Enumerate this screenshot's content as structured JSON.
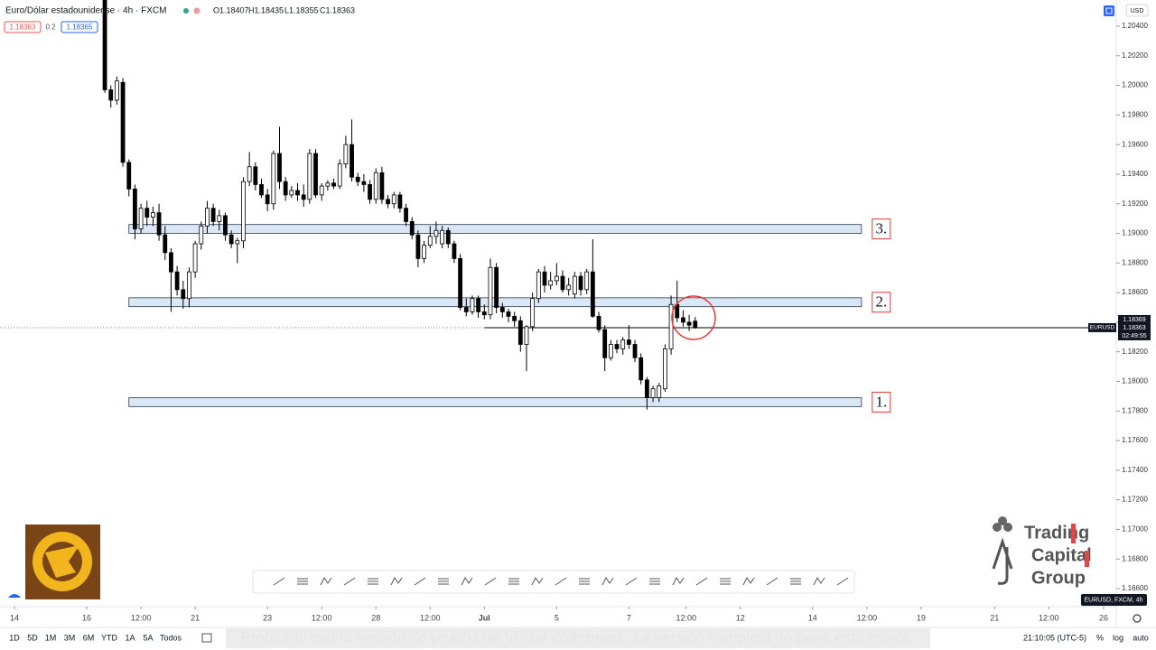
{
  "header": {
    "symbol": "Euro/Dólar estadounidense · 4h · FXCM",
    "ohlc": [
      "O1.18407",
      "H1.18435",
      "L1.18355",
      "C1.18363"
    ],
    "sell": "1.18363",
    "spread": "0.2",
    "buy": "1.18365",
    "currency": "USD"
  },
  "price_tags": {
    "bid": "1.18369",
    "last": "1.18363",
    "countdown": "02:49:55",
    "symbol_tag": "EURUSD"
  },
  "bottom_bar": {
    "ranges": [
      "1D",
      "5D",
      "1M",
      "3M",
      "6M",
      "YTD",
      "1A",
      "5A",
      "Todos"
    ],
    "clock": "21:10:05 (UTC-5)",
    "options": [
      "%",
      "log",
      "auto"
    ]
  },
  "series_tag": "EURUSD, FXCM, 4h",
  "logo": {
    "lines": [
      "Trading",
      "Capital",
      "Group"
    ]
  },
  "watermark": "Protegido con la versión de prueba de Visual Watermark. La versión completa no pone esta marca.",
  "chart_data": {
    "type": "candlestick",
    "up_color": "#ffffff",
    "down_color": "#000000",
    "wick_color": "#000000",
    "open": [
      1.206,
      1.1997,
      1.199,
      1.2002,
      1.1948,
      1.193,
      1.1903,
      1.1917,
      1.1911,
      1.1914,
      1.1899,
      1.1887,
      1.1874,
      1.1862,
      1.1856,
      1.1874,
      1.1893,
      1.1905,
      1.1917,
      1.1908,
      1.1912,
      1.1899,
      1.1893,
      1.1895,
      1.1935,
      1.1945,
      1.1933,
      1.1926,
      1.192,
      1.1954,
      1.1935,
      1.1926,
      1.1929,
      1.1926,
      1.1923,
      1.1954,
      1.1926,
      1.1932,
      1.1934,
      1.1932,
      1.1947,
      1.196,
      1.1938,
      1.1935,
      1.1933,
      1.1923,
      1.1941,
      1.1923,
      1.192,
      1.1926,
      1.1917,
      1.1908,
      1.1899,
      1.1883,
      1.1892,
      1.1898,
      1.1893,
      1.1902,
      1.1893,
      1.1883,
      1.185,
      1.1847,
      1.1856,
      1.1847,
      1.1845,
      1.1877,
      1.185,
      1.1847,
      1.1844,
      1.1841,
      1.1825,
      1.1837,
      1.1856,
      1.1874,
      1.1865,
      1.1868,
      1.1871,
      1.1862,
      1.1859,
      1.1871,
      1.1862,
      1.1874,
      1.1844,
      1.1835,
      1.1816,
      1.1825,
      1.1822,
      1.1828,
      1.1825,
      1.1816,
      1.1801,
      1.1789,
      1.1789,
      1.1795,
      1.1822,
      1.1852,
      1.1843,
      1.184,
      1.18407
    ],
    "high": [
      1.2065,
      1.2,
      1.2006,
      1.2005,
      1.195,
      1.1933,
      1.192,
      1.1922,
      1.1918,
      1.192,
      1.1905,
      1.189,
      1.1878,
      1.1868,
      1.1877,
      1.1895,
      1.1908,
      1.1922,
      1.192,
      1.1916,
      1.1914,
      1.1902,
      1.1897,
      1.1938,
      1.1955,
      1.1948,
      1.1937,
      1.193,
      1.1956,
      1.1972,
      1.1938,
      1.1932,
      1.1934,
      1.1933,
      1.1957,
      1.1957,
      1.1934,
      1.1936,
      1.1937,
      1.195,
      1.1966,
      1.1977,
      1.1941,
      1.194,
      1.1936,
      1.1944,
      1.1945,
      1.1926,
      1.1928,
      1.1928,
      1.192,
      1.1911,
      1.1902,
      1.1895,
      1.1905,
      1.1908,
      1.1905,
      1.1904,
      1.1895,
      1.1886,
      1.1856,
      1.1858,
      1.1858,
      1.1852,
      1.1883,
      1.188,
      1.1853,
      1.1849,
      1.1847,
      1.1844,
      1.1838,
      1.186,
      1.1876,
      1.1878,
      1.1874,
      1.188,
      1.1875,
      1.187,
      1.1874,
      1.1874,
      1.1876,
      1.1896,
      1.1847,
      1.1838,
      1.1828,
      1.1828,
      1.183,
      1.1838,
      1.1828,
      1.1819,
      1.1803,
      1.1797,
      1.1799,
      1.1825,
      1.1858,
      1.1868,
      1.1848,
      1.1845,
      1.18435
    ],
    "low": [
      1.1995,
      1.1985,
      1.1987,
      1.1945,
      1.1925,
      1.1896,
      1.19,
      1.1905,
      1.1905,
      1.1895,
      1.1882,
      1.1847,
      1.1858,
      1.1849,
      1.185,
      1.187,
      1.1889,
      1.19,
      1.1905,
      1.1902,
      1.1895,
      1.189,
      1.188,
      1.189,
      1.1932,
      1.1929,
      1.1924,
      1.1915,
      1.1916,
      1.193,
      1.1922,
      1.1924,
      1.1922,
      1.1918,
      1.192,
      1.1924,
      1.1922,
      1.1929,
      1.193,
      1.193,
      1.1944,
      1.1935,
      1.1932,
      1.1928,
      1.192,
      1.192,
      1.192,
      1.1917,
      1.1917,
      1.1914,
      1.1905,
      1.1896,
      1.1877,
      1.188,
      1.189,
      1.1893,
      1.189,
      1.189,
      1.188,
      1.1848,
      1.1844,
      1.1845,
      1.1843,
      1.1842,
      1.1842,
      1.1846,
      1.1843,
      1.184,
      1.1837,
      1.182,
      1.1807,
      1.1834,
      1.1853,
      1.186,
      1.1862,
      1.1865,
      1.186,
      1.1858,
      1.1856,
      1.1858,
      1.1859,
      1.1843,
      1.1833,
      1.1807,
      1.1814,
      1.1819,
      1.1818,
      1.1822,
      1.1813,
      1.1798,
      1.1781,
      1.1786,
      1.1786,
      1.1793,
      1.1818,
      1.184,
      1.1837,
      1.1834,
      1.18355
    ],
    "close": [
      1.1997,
      1.199,
      1.2003,
      1.1948,
      1.193,
      1.1903,
      1.1917,
      1.1911,
      1.1914,
      1.1899,
      1.1887,
      1.1874,
      1.1862,
      1.1856,
      1.1874,
      1.1893,
      1.1905,
      1.1917,
      1.1908,
      1.1912,
      1.1899,
      1.1893,
      1.1895,
      1.1935,
      1.1945,
      1.1933,
      1.1926,
      1.192,
      1.1954,
      1.1935,
      1.1926,
      1.1929,
      1.1926,
      1.1923,
      1.1954,
      1.1926,
      1.1932,
      1.1934,
      1.1932,
      1.1947,
      1.196,
      1.1938,
      1.1935,
      1.1933,
      1.1923,
      1.1941,
      1.1923,
      1.192,
      1.1926,
      1.1917,
      1.1908,
      1.1899,
      1.1883,
      1.1892,
      1.1898,
      1.1902,
      1.1902,
      1.1893,
      1.1883,
      1.185,
      1.1847,
      1.1856,
      1.1847,
      1.1845,
      1.1877,
      1.185,
      1.1847,
      1.1844,
      1.1841,
      1.1825,
      1.1837,
      1.1856,
      1.1874,
      1.1865,
      1.1868,
      1.1871,
      1.1862,
      1.1865,
      1.1871,
      1.1862,
      1.1874,
      1.1844,
      1.1835,
      1.1816,
      1.1825,
      1.1822,
      1.1828,
      1.1825,
      1.1816,
      1.1801,
      1.1789,
      1.1795,
      1.1797,
      1.1822,
      1.1852,
      1.1843,
      1.184,
      1.1838,
      1.18363
    ],
    "xlim": [
      -17.4,
      167.9
    ],
    "xticks": [
      {
        "value": -15,
        "label": "14"
      },
      {
        "value": -3,
        "label": "16"
      },
      {
        "value": 6,
        "label": "12:00"
      },
      {
        "value": 15,
        "label": "21"
      },
      {
        "value": 27,
        "label": "23"
      },
      {
        "value": 36,
        "label": "12:00"
      },
      {
        "value": 45,
        "label": "28"
      },
      {
        "value": 54,
        "label": "12:00"
      },
      {
        "value": 63,
        "label": "Jul"
      },
      {
        "value": 75,
        "label": "5"
      },
      {
        "value": 87,
        "label": "7"
      },
      {
        "value": 96.5,
        "label": "12:00"
      },
      {
        "value": 105.5,
        "label": "12"
      },
      {
        "value": 117.5,
        "label": "14"
      },
      {
        "value": 126.5,
        "label": "12:00"
      },
      {
        "value": 135.5,
        "label": "19"
      },
      {
        "value": 147.7,
        "label": "21"
      },
      {
        "value": 156.7,
        "label": "12:00"
      },
      {
        "value": 165.8,
        "label": "26"
      }
    ],
    "ylim": [
      1.16478,
      1.20577
    ],
    "yticks": [
      {
        "value": 1.166,
        "label": "1.16600"
      },
      {
        "value": 1.168,
        "label": "1.16800"
      },
      {
        "value": 1.17,
        "label": "1.17000"
      },
      {
        "value": 1.172,
        "label": "1.17200"
      },
      {
        "value": 1.174,
        "label": "1.17400"
      },
      {
        "value": 1.176,
        "label": "1.17600"
      },
      {
        "value": 1.178,
        "label": "1.17800"
      },
      {
        "value": 1.18,
        "label": "1.18000"
      },
      {
        "value": 1.182,
        "label": "1.18200"
      },
      {
        "value": 1.184,
        "label": "1.18400"
      },
      {
        "value": 1.186,
        "label": "1.18600"
      },
      {
        "value": 1.188,
        "label": "1.18800"
      },
      {
        "value": 1.19,
        "label": "1.19000"
      },
      {
        "value": 1.192,
        "label": "1.19200"
      },
      {
        "value": 1.194,
        "label": "1.19400"
      },
      {
        "value": 1.196,
        "label": "1.19600"
      },
      {
        "value": 1.198,
        "label": "1.19800"
      },
      {
        "value": 1.2,
        "label": "1.20000"
      },
      {
        "value": 1.202,
        "label": "1.20200"
      },
      {
        "value": 1.204,
        "label": "1.20400"
      }
    ],
    "zones": [
      {
        "label": "3.",
        "top": 1.1906,
        "bottom": 1.19,
        "start": 4,
        "end": 125.6
      },
      {
        "label": "2.",
        "top": 1.18565,
        "bottom": 1.18505,
        "start": 4,
        "end": 125.6
      },
      {
        "label": "1.",
        "top": 1.1789,
        "bottom": 1.1783,
        "start": 4,
        "end": 125.6
      }
    ],
    "level_line": {
      "value": 1.18363,
      "start": 63,
      "end": 163.3
    }
  }
}
